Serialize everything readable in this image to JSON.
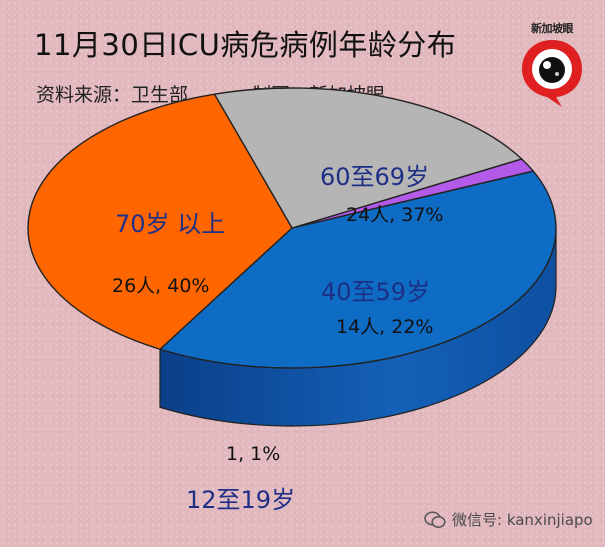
{
  "header": {
    "title": "11月30日ICU病危病例年龄分布",
    "source": "资料来源：卫生部",
    "maker": "制图：新加坡眼"
  },
  "logo": {
    "text": "新加坡眼"
  },
  "watermark": {
    "text": "微信号: kanxinjiapo"
  },
  "colors": {
    "age_12_19": "#b45ae8",
    "age_40_59": "#b5b5b5",
    "age_60_69": "#ff6600",
    "age_70_plus": "#0e6cc4",
    "label_blue": "#1e2f86"
  },
  "chart_data": {
    "type": "pie",
    "title": "11月30日ICU病危病例年龄分布",
    "style": "3d",
    "categories": [
      "12至19岁",
      "40至59岁",
      "60至69岁",
      "70岁 以上"
    ],
    "counts": [
      1,
      14,
      24,
      26
    ],
    "percent": [
      1,
      22,
      37,
      40
    ],
    "value_labels": [
      "1, 1%",
      "14人, 22%",
      "24人, 37%",
      "26人, 40%"
    ],
    "legend": "none"
  }
}
